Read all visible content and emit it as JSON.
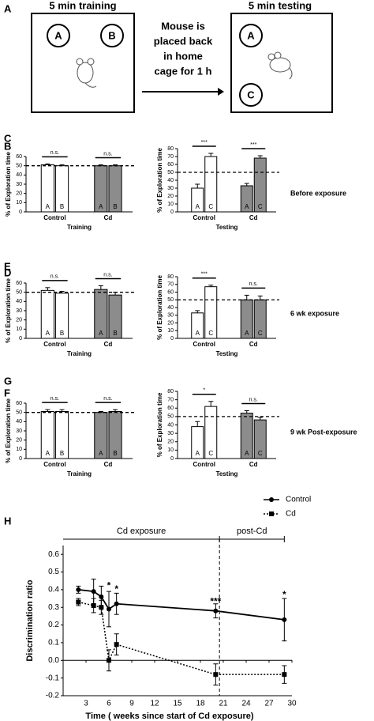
{
  "panel_a": {
    "label": "A",
    "training_title": "5 min training",
    "testing_title": "5 min testing",
    "middle_text": [
      "Mouse is",
      "placed back",
      "in home",
      "cage for 1 h"
    ],
    "training_objects": [
      "A",
      "B"
    ],
    "testing_objects": [
      "A",
      "C"
    ]
  },
  "row_labels": [
    "Before exposure",
    "6 wk exposure",
    "9 wk Post-exposure"
  ],
  "chart_data": [
    {
      "type": "bar",
      "panel": "B",
      "ylabel": "% of Exploration time",
      "xlabel": "Training",
      "ylim": [
        0,
        60
      ],
      "yticks": [
        0,
        10,
        20,
        30,
        40,
        50,
        60
      ],
      "reference_line": 50,
      "groups": [
        {
          "name": "Control",
          "color": "#ffffff",
          "categories": [
            "A",
            "B"
          ],
          "values": [
            51,
            50
          ],
          "errors": [
            1,
            1
          ],
          "significance": "n.s."
        },
        {
          "name": "Cd",
          "color": "#8c8c8c",
          "categories": [
            "A",
            "B"
          ],
          "values": [
            50,
            50
          ],
          "errors": [
            1,
            1
          ],
          "significance": "n.s."
        }
      ]
    },
    {
      "type": "bar",
      "panel": "C",
      "ylabel": "% of Exploration time",
      "xlabel": "Testing",
      "ylim": [
        0,
        80
      ],
      "yticks": [
        0,
        10,
        20,
        30,
        40,
        50,
        60,
        70,
        80
      ],
      "reference_line": 50,
      "groups": [
        {
          "name": "Control",
          "color": "#ffffff",
          "categories": [
            "A",
            "C"
          ],
          "values": [
            30,
            70
          ],
          "errors": [
            5,
            4
          ],
          "significance": "***"
        },
        {
          "name": "Cd",
          "color": "#8c8c8c",
          "categories": [
            "A",
            "C"
          ],
          "values": [
            33,
            68
          ],
          "errors": [
            3,
            3
          ],
          "significance": "***"
        }
      ]
    },
    {
      "type": "bar",
      "panel": "D",
      "ylabel": "% of Exploration time",
      "xlabel": "Training",
      "ylim": [
        0,
        60
      ],
      "yticks": [
        0,
        10,
        20,
        30,
        40,
        50,
        60
      ],
      "reference_line": 50,
      "groups": [
        {
          "name": "Control",
          "color": "#ffffff",
          "categories": [
            "A",
            "B"
          ],
          "values": [
            52,
            49
          ],
          "errors": [
            3,
            2
          ],
          "significance": "n.s."
        },
        {
          "name": "Cd",
          "color": "#8c8c8c",
          "categories": [
            "A",
            "B"
          ],
          "values": [
            53,
            47
          ],
          "errors": [
            4,
            3
          ],
          "significance": "n.s."
        }
      ]
    },
    {
      "type": "bar",
      "panel": "E",
      "ylabel": "% of Exploration time",
      "xlabel": "Testing",
      "ylim": [
        0,
        80
      ],
      "yticks": [
        0,
        10,
        20,
        30,
        40,
        50,
        60,
        70,
        80
      ],
      "reference_line": 50,
      "groups": [
        {
          "name": "Control",
          "color": "#ffffff",
          "categories": [
            "A",
            "C"
          ],
          "values": [
            33,
            67
          ],
          "errors": [
            3,
            2
          ],
          "significance": "***"
        },
        {
          "name": "Cd",
          "color": "#8c8c8c",
          "categories": [
            "A",
            "C"
          ],
          "values": [
            50,
            50
          ],
          "errors": [
            6,
            5
          ],
          "significance": "n.s."
        }
      ]
    },
    {
      "type": "bar",
      "panel": "F",
      "ylabel": "% of Exploration time",
      "xlabel": "Training",
      "ylim": [
        0,
        60
      ],
      "yticks": [
        0,
        10,
        20,
        30,
        40,
        50,
        60
      ],
      "reference_line": 50,
      "groups": [
        {
          "name": "Control",
          "color": "#ffffff",
          "categories": [
            "A",
            "B"
          ],
          "values": [
            51,
            51
          ],
          "errors": [
            2,
            2
          ],
          "significance": "n.s."
        },
        {
          "name": "Cd",
          "color": "#8c8c8c",
          "categories": [
            "A",
            "B"
          ],
          "values": [
            50,
            51
          ],
          "errors": [
            1,
            2
          ],
          "significance": "n.s."
        }
      ]
    },
    {
      "type": "bar",
      "panel": "G",
      "ylabel": "% of Exploration time",
      "xlabel": "Testing",
      "ylim": [
        0,
        80
      ],
      "yticks": [
        0,
        10,
        20,
        30,
        40,
        50,
        60,
        70,
        80
      ],
      "reference_line": 50,
      "groups": [
        {
          "name": "Control",
          "color": "#ffffff",
          "categories": [
            "A",
            "C"
          ],
          "values": [
            38,
            62
          ],
          "errors": [
            6,
            6
          ],
          "significance": "*"
        },
        {
          "name": "Cd",
          "color": "#8c8c8c",
          "categories": [
            "A",
            "C"
          ],
          "values": [
            54,
            46
          ],
          "errors": [
            3,
            3
          ],
          "significance": "n.s."
        }
      ]
    },
    {
      "type": "line",
      "panel": "H",
      "ylabel": "Discrimination ratio",
      "xlabel": "Time ( weeks since start of Cd exposure)",
      "xlim": [
        0,
        30
      ],
      "xticks": [
        3,
        6,
        9,
        12,
        15,
        18,
        21,
        24,
        27,
        30
      ],
      "ylim": [
        -0.2,
        0.65
      ],
      "yticks": [
        -0.2,
        -0.1,
        {
          "value": 0,
          "label": "0.0"
        },
        0.1,
        0.2,
        0.3,
        0.4,
        0.5,
        0.6
      ],
      "series": [
        {
          "name": "Control",
          "color": "#000000",
          "line_style": "solid",
          "marker": "circle",
          "x": [
            2,
            4,
            5,
            6,
            7,
            20,
            29
          ],
          "values": [
            0.4,
            0.39,
            0.36,
            0.29,
            0.32,
            0.28,
            0.23
          ],
          "errors": [
            0.02,
            0.07,
            0.06,
            0.1,
            0.06,
            0.04,
            0.12
          ]
        },
        {
          "name": "Cd",
          "color": "#000000",
          "line_style": "dotted",
          "marker": "square",
          "x": [
            2,
            4,
            5,
            6,
            7,
            20,
            29
          ],
          "values": [
            0.33,
            0.31,
            0.3,
            0.0,
            0.09,
            -0.08,
            -0.08
          ],
          "errors": [
            0.02,
            0.04,
            0.04,
            0.06,
            0.06,
            0.06,
            0.05
          ]
        }
      ],
      "phases": [
        {
          "label": "Cd exposure",
          "start": 0,
          "end": 20.5
        },
        {
          "label": "post-Cd",
          "start": 20.5,
          "end": 29
        }
      ],
      "annotations": [
        {
          "text": "*",
          "x": 6,
          "y": 0.42
        },
        {
          "text": "*",
          "x": 7,
          "y": 0.4
        },
        {
          "text": "***",
          "x": 20,
          "y": 0.33
        },
        {
          "text": "*",
          "x": 29,
          "y": 0.37
        }
      ]
    }
  ]
}
